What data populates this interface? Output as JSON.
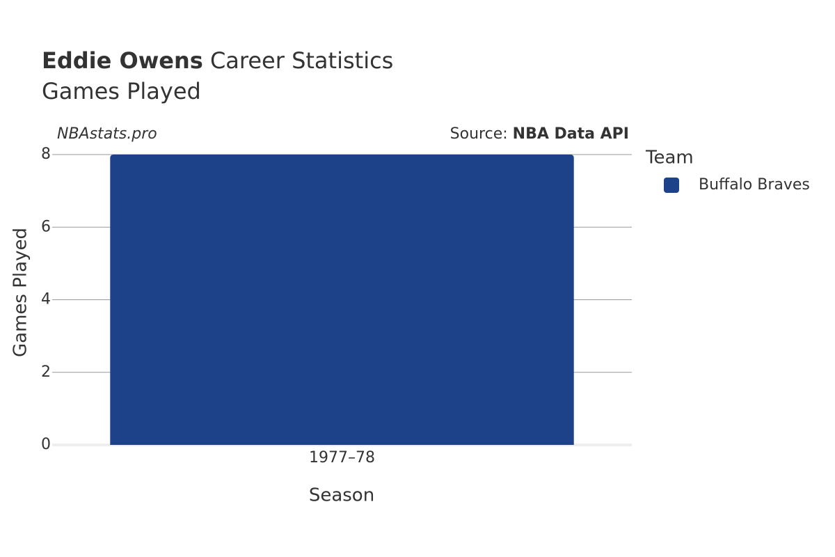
{
  "chart_data": {
    "type": "bar",
    "title_bold": "Eddie Owens",
    "title": "Career Statistics",
    "subtitle": "Games Played",
    "watermark": "NBAstats.pro",
    "source_label": "Source:",
    "source": "NBA Data API",
    "x_label": "Season",
    "y_label": "Games Played",
    "legend_title": "Team",
    "categories": [
      "1977–78"
    ],
    "series": [
      {
        "name": "Buffalo Braves",
        "color": "#1d428a",
        "values": [
          8
        ]
      }
    ],
    "ylim": [
      0,
      8
    ],
    "yticks": [
      0,
      2,
      4,
      6,
      8
    ],
    "grid": true
  }
}
